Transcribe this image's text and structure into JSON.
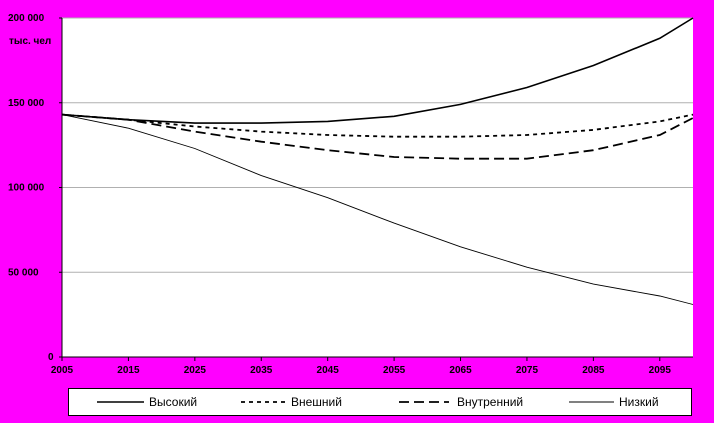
{
  "chart_data": {
    "type": "line",
    "ylabel": "тыс. чел",
    "ylim": [
      0,
      200000
    ],
    "yticks": [
      0,
      50000,
      100000,
      150000,
      200000
    ],
    "ytick_labels": [
      "0",
      "50 000",
      "100 000",
      "150 000",
      "200 000"
    ],
    "xlim": [
      2005,
      2100
    ],
    "xticks": [
      2005,
      2015,
      2025,
      2035,
      2045,
      2055,
      2065,
      2075,
      2085,
      2095
    ],
    "xtick_labels": [
      "2005",
      "2015",
      "2025",
      "2035",
      "2045",
      "2055",
      "2065",
      "2075",
      "2085",
      "2095"
    ],
    "grid": true,
    "legend_position": "bottom",
    "x": [
      2005,
      2015,
      2025,
      2035,
      2045,
      2055,
      2065,
      2075,
      2085,
      2095,
      2100
    ],
    "series": [
      {
        "name": "Высокий",
        "style": "solid",
        "values": [
          143000,
          140000,
          138000,
          138000,
          139000,
          142000,
          149000,
          159000,
          172000,
          188000,
          200000
        ]
      },
      {
        "name": "Внешний",
        "style": "dotted",
        "values": [
          143000,
          140000,
          136000,
          133000,
          131000,
          130000,
          130000,
          131000,
          134000,
          139000,
          143000
        ]
      },
      {
        "name": "Внутренний",
        "style": "dashed",
        "values": [
          143000,
          140000,
          133000,
          127000,
          122000,
          118000,
          117000,
          117000,
          122000,
          131000,
          141000
        ]
      },
      {
        "name": "Низкий",
        "style": "thin",
        "values": [
          143000,
          135000,
          123000,
          107000,
          94000,
          79000,
          65000,
          53000,
          43000,
          36000,
          31000
        ]
      }
    ]
  }
}
